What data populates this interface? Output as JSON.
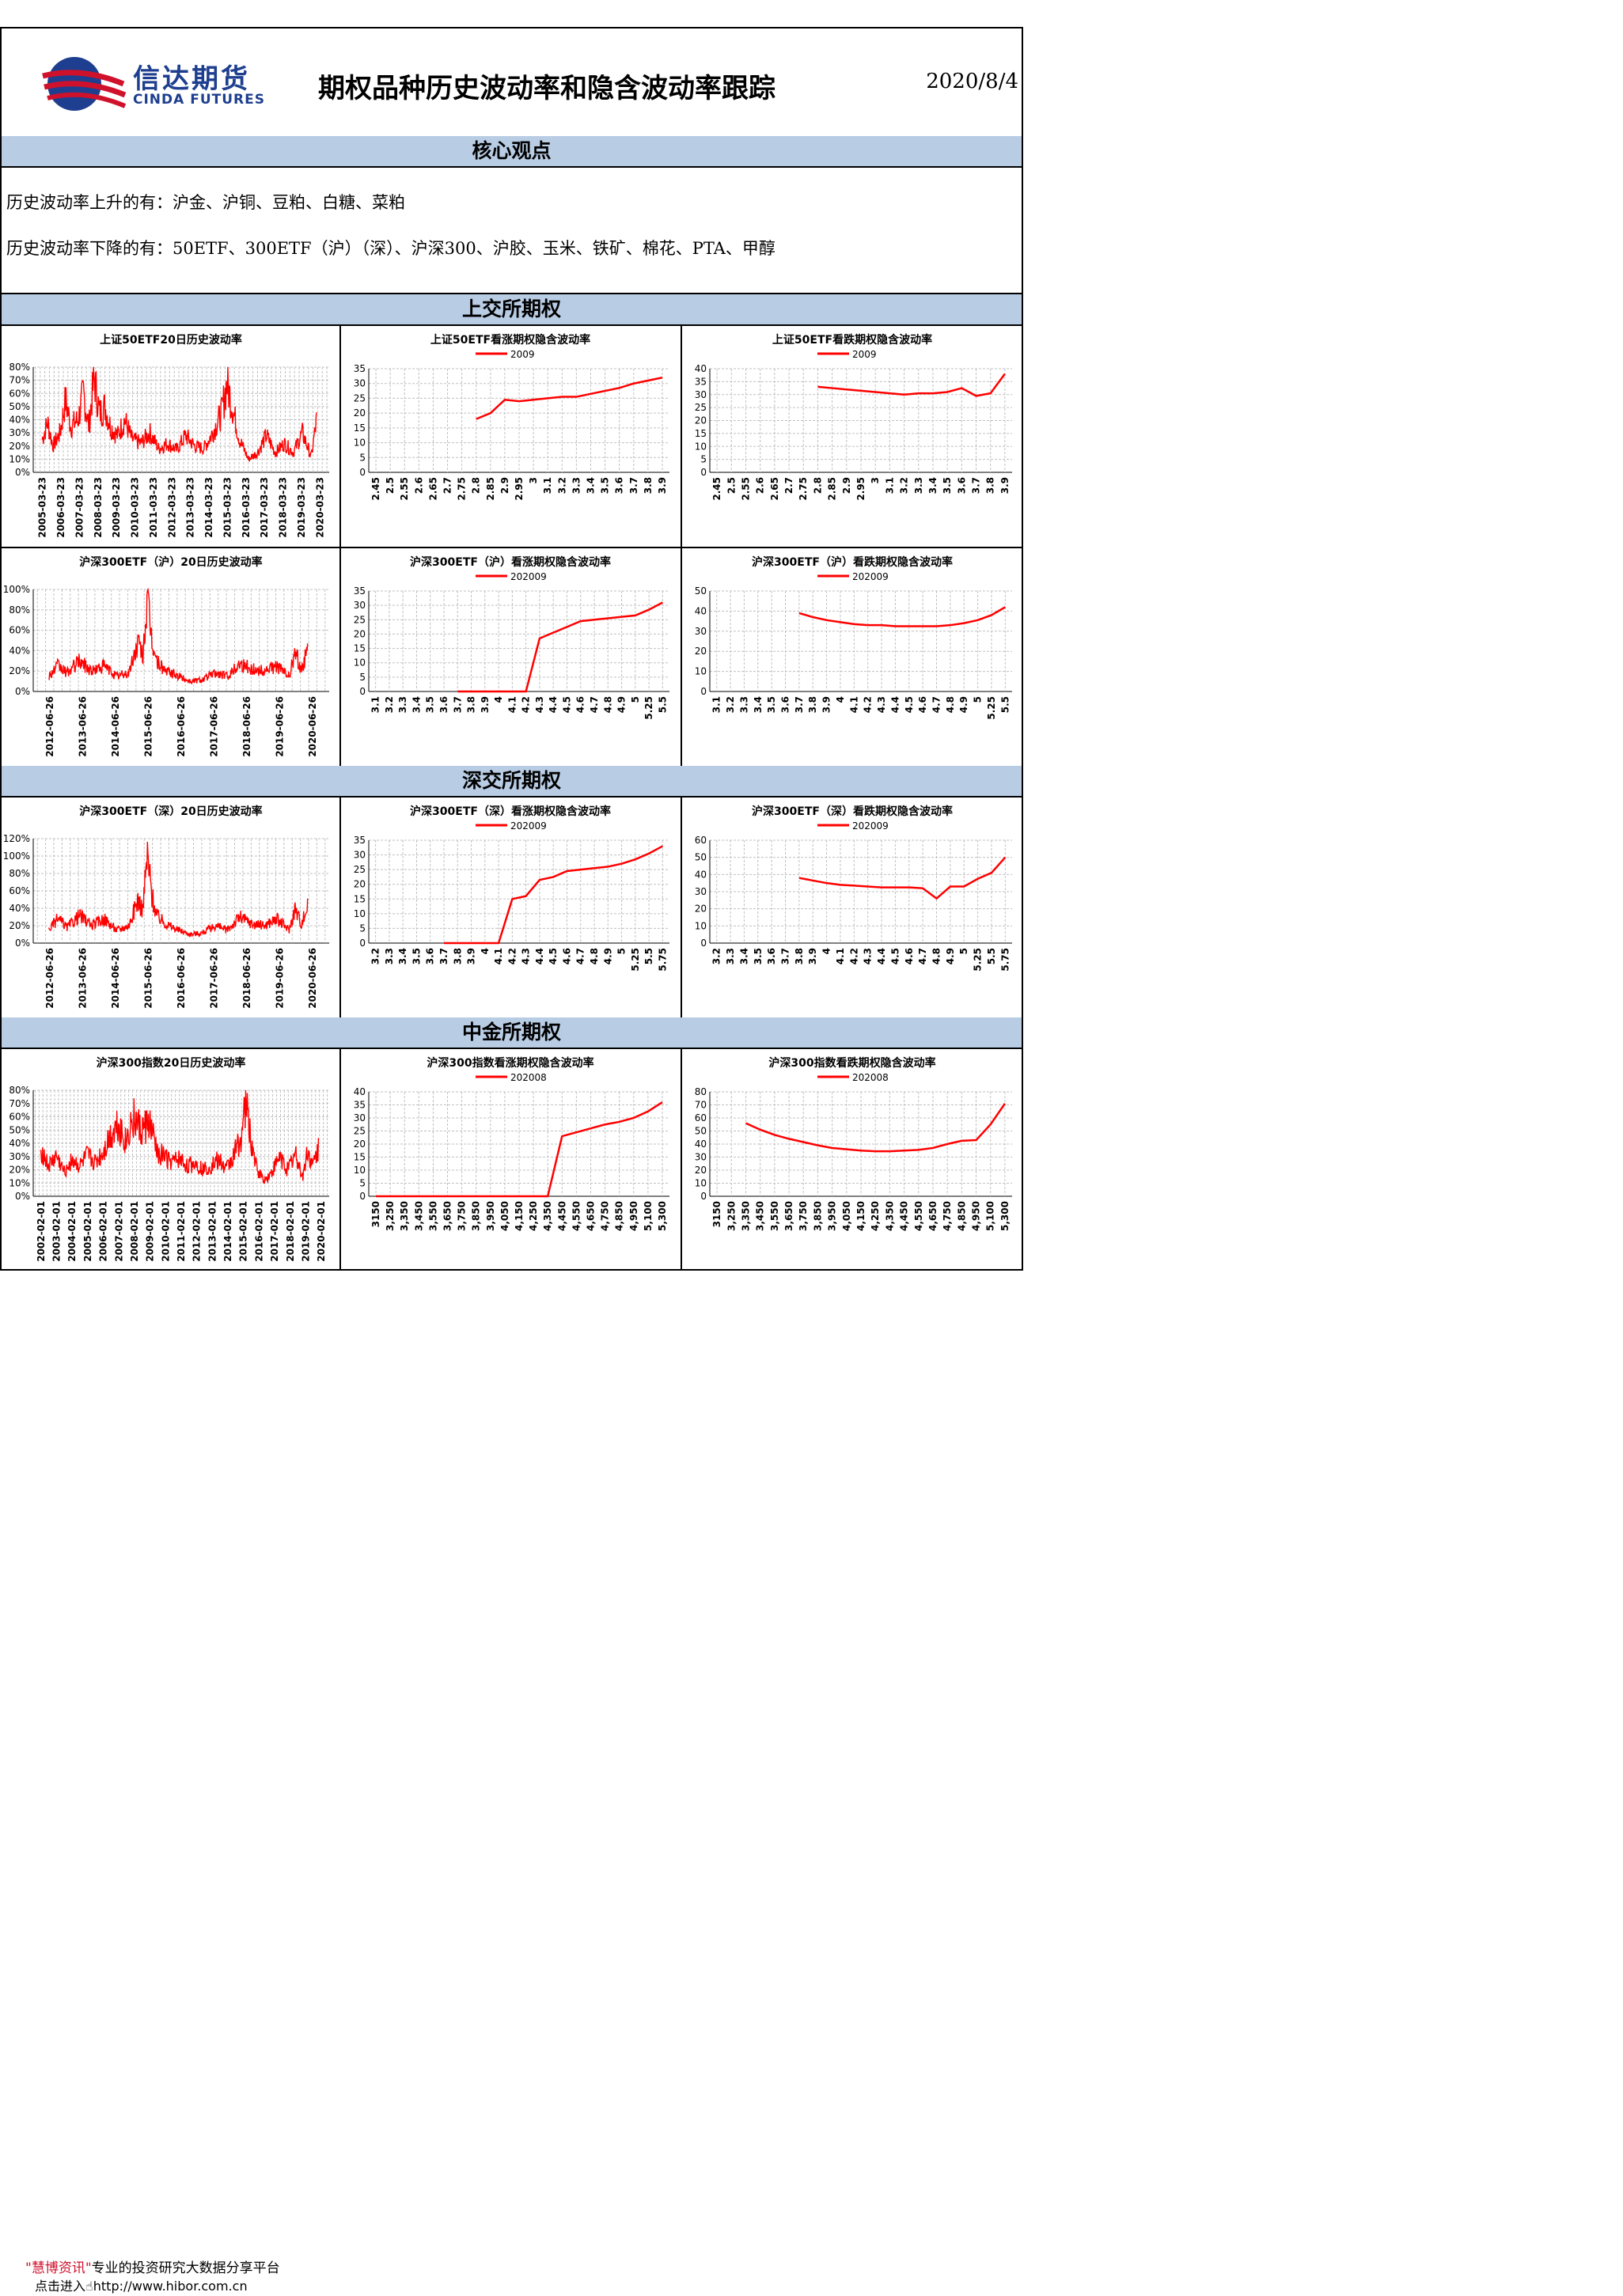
{
  "header": {
    "logo_cn": "信达期货",
    "logo_en": "CINDA FUTURES",
    "title": "期权品种历史波动率和隐含波动率跟踪",
    "date": "2020/8/4"
  },
  "core": {
    "title": "核心观点",
    "line1": "历史波动率上升的有：沪金、沪铜、豆粕、白糖、菜粕",
    "line2": "历史波动率下降的有：50ETF、300ETF（沪）（深）、沪深300、沪胶、玉米、铁矿、棉花、PTA、甲醇"
  },
  "sections": {
    "sse": "上交所期权",
    "szse": "深交所期权",
    "cffex": "中金所期权"
  },
  "footer": {
    "brand": "\"慧博资讯\"",
    "slogan": "专业的投资研究大数据分享平台",
    "enter": "点击进入",
    "url": "http://www.hibor.com.cn"
  },
  "colors": {
    "series": "#ff0000",
    "band": "#b8cce4",
    "grid": "#c0c0c0",
    "logo": "#1e3f8f"
  },
  "chart_data": [
    {
      "type": "line",
      "title": "上证50ETF20日历史波动率",
      "categories": [
        "2005-03-23",
        "2006-03-23",
        "2007-03-23",
        "2008-03-23",
        "2009-03-23",
        "2010-03-23",
        "2011-03-23",
        "2012-03-23",
        "2013-03-23",
        "2014-03-23",
        "2015-03-23",
        "2016-03-23",
        "2017-03-23",
        "2018-03-23",
        "2019-03-23",
        "2020-03-23"
      ],
      "y_ticks": [
        "0%",
        "10%",
        "20%",
        "30%",
        "40%",
        "50%",
        "60%",
        "70%",
        "80%"
      ],
      "ylim": [
        0,
        80
      ],
      "anchors": [
        [
          0,
          25
        ],
        [
          0.3,
          38
        ],
        [
          0.6,
          20
        ],
        [
          1,
          30
        ],
        [
          1.3,
          55
        ],
        [
          1.6,
          35
        ],
        [
          2,
          40
        ],
        [
          2.3,
          60
        ],
        [
          2.6,
          35
        ],
        [
          2.9,
          72
        ],
        [
          3.2,
          45
        ],
        [
          3.5,
          50
        ],
        [
          3.8,
          35
        ],
        [
          4.2,
          28
        ],
        [
          4.6,
          40
        ],
        [
          5,
          25
        ],
        [
          5.5,
          22
        ],
        [
          6,
          30
        ],
        [
          6.5,
          18
        ],
        [
          7,
          22
        ],
        [
          7.5,
          17
        ],
        [
          8,
          28
        ],
        [
          8.5,
          20
        ],
        [
          9,
          18
        ],
        [
          9.5,
          30
        ],
        [
          10,
          45
        ],
        [
          10.3,
          68
        ],
        [
          10.6,
          50
        ],
        [
          11,
          25
        ],
        [
          11.5,
          10
        ],
        [
          12,
          15
        ],
        [
          12.5,
          28
        ],
        [
          13,
          15
        ],
        [
          13.5,
          22
        ],
        [
          14,
          15
        ],
        [
          14.5,
          30
        ],
        [
          15,
          12
        ],
        [
          15.3,
          40
        ]
      ]
    },
    {
      "type": "line",
      "title": "上证50ETF看涨期权隐含波动率",
      "series_name": "2009",
      "categories": [
        "2.45",
        "2.5",
        "2.55",
        "2.6",
        "2.65",
        "2.7",
        "2.75",
        "2.8",
        "2.85",
        "2.9",
        "2.95",
        "3",
        "3.1",
        "3.2",
        "3.3",
        "3.4",
        "3.5",
        "3.6",
        "3.7",
        "3.8",
        "3.9"
      ],
      "y_ticks": [
        "0",
        "5",
        "10",
        "15",
        "20",
        "25",
        "30",
        "35"
      ],
      "ylim": [
        0,
        35
      ],
      "values": [
        null,
        null,
        null,
        null,
        null,
        null,
        null,
        18,
        20,
        24.5,
        24,
        24.5,
        25,
        25.5,
        25.5,
        26.5,
        27.5,
        28.5,
        30,
        31,
        32
      ]
    },
    {
      "type": "line",
      "title": "上证50ETF看跌期权隐含波动率",
      "series_name": "2009",
      "categories": [
        "2.45",
        "2.5",
        "2.55",
        "2.6",
        "2.65",
        "2.7",
        "2.75",
        "2.8",
        "2.85",
        "2.9",
        "2.95",
        "3",
        "3.1",
        "3.2",
        "3.3",
        "3.4",
        "3.5",
        "3.6",
        "3.7",
        "3.8",
        "3.9"
      ],
      "y_ticks": [
        "0",
        "5",
        "10",
        "15",
        "20",
        "25",
        "30",
        "35",
        "40"
      ],
      "ylim": [
        0,
        40
      ],
      "values": [
        null,
        null,
        null,
        null,
        null,
        null,
        null,
        33,
        32.5,
        32,
        31.5,
        31,
        30.5,
        30,
        30.5,
        30.5,
        31,
        32.5,
        29.5,
        30.5,
        38
      ]
    },
    {
      "type": "line",
      "title": "沪深300ETF（沪）20日历史波动率",
      "categories": [
        "2012-06-26",
        "2013-06-26",
        "2014-06-26",
        "2015-06-26",
        "2016-06-26",
        "2017-06-26",
        "2018-06-26",
        "2019-06-26",
        "2020-06-26"
      ],
      "y_ticks": [
        "0%",
        "20%",
        "40%",
        "60%",
        "80%",
        "100%"
      ],
      "ylim": [
        0,
        100
      ],
      "anchors": [
        [
          0,
          15
        ],
        [
          0.3,
          25
        ],
        [
          0.6,
          18
        ],
        [
          1,
          30
        ],
        [
          1.4,
          20
        ],
        [
          1.8,
          25
        ],
        [
          2.2,
          15
        ],
        [
          2.6,
          18
        ],
        [
          2.9,
          48
        ],
        [
          3.05,
          35
        ],
        [
          3.2,
          88
        ],
        [
          3.35,
          50
        ],
        [
          3.5,
          30
        ],
        [
          3.8,
          20
        ],
        [
          4.2,
          15
        ],
        [
          4.6,
          10
        ],
        [
          5,
          12
        ],
        [
          5.4,
          18
        ],
        [
          5.8,
          15
        ],
        [
          6.2,
          28
        ],
        [
          6.6,
          22
        ],
        [
          7,
          20
        ],
        [
          7.4,
          25
        ],
        [
          7.8,
          15
        ],
        [
          8,
          38
        ],
        [
          8.2,
          22
        ],
        [
          8.4,
          40
        ]
      ]
    },
    {
      "type": "line",
      "title": "沪深300ETF（沪）看涨期权隐含波动率",
      "series_name": "202009",
      "categories": [
        "3.1",
        "3.2",
        "3.3",
        "3.4",
        "3.5",
        "3.6",
        "3.7",
        "3.8",
        "3.9",
        "4",
        "4.1",
        "4.2",
        "4.3",
        "4.4",
        "4.5",
        "4.6",
        "4.7",
        "4.8",
        "4.9",
        "5",
        "5.25",
        "5.5"
      ],
      "y_ticks": [
        "0",
        "5",
        "10",
        "15",
        "20",
        "25",
        "30",
        "35"
      ],
      "ylim": [
        0,
        35
      ],
      "values": [
        null,
        null,
        null,
        null,
        null,
        null,
        0,
        0,
        0,
        0,
        0,
        0,
        18.5,
        20.5,
        22.5,
        24.5,
        25,
        25.5,
        26,
        26.5,
        28.5,
        31
      ]
    },
    {
      "type": "line",
      "title": "沪深300ETF（沪）看跌期权隐含波动率",
      "series_name": "202009",
      "categories": [
        "3.1",
        "3.2",
        "3.3",
        "3.4",
        "3.5",
        "3.6",
        "3.7",
        "3.8",
        "3.9",
        "4",
        "4.1",
        "4.2",
        "4.3",
        "4.4",
        "4.5",
        "4.6",
        "4.7",
        "4.8",
        "4.9",
        "5",
        "5.25",
        "5.5"
      ],
      "y_ticks": [
        "0",
        "10",
        "20",
        "30",
        "40",
        "50"
      ],
      "ylim": [
        0,
        50
      ],
      "values": [
        null,
        null,
        null,
        null,
        null,
        null,
        39,
        37,
        35.5,
        34.5,
        33.5,
        33,
        33,
        32.5,
        32.5,
        32.5,
        32.5,
        33,
        34,
        35.5,
        38,
        42
      ]
    },
    {
      "type": "line",
      "title": "沪深300ETF（深）20日历史波动率",
      "categories": [
        "2012-06-26",
        "2013-06-26",
        "2014-06-26",
        "2015-06-26",
        "2016-06-26",
        "2017-06-26",
        "2018-06-26",
        "2019-06-26",
        "2020-06-26"
      ],
      "y_ticks": [
        "0%",
        "20%",
        "40%",
        "60%",
        "80%",
        "100%",
        "120%"
      ],
      "ylim": [
        0,
        120
      ],
      "anchors": [
        [
          0,
          15
        ],
        [
          0.3,
          28
        ],
        [
          0.6,
          18
        ],
        [
          1,
          32
        ],
        [
          1.4,
          20
        ],
        [
          1.8,
          28
        ],
        [
          2.2,
          15
        ],
        [
          2.6,
          20
        ],
        [
          2.9,
          50
        ],
        [
          3.05,
          38
        ],
        [
          3.2,
          100
        ],
        [
          3.35,
          55
        ],
        [
          3.5,
          32
        ],
        [
          3.8,
          22
        ],
        [
          4.2,
          15
        ],
        [
          4.6,
          10
        ],
        [
          5,
          12
        ],
        [
          5.4,
          20
        ],
        [
          5.8,
          15
        ],
        [
          6.2,
          30
        ],
        [
          6.6,
          22
        ],
        [
          7,
          20
        ],
        [
          7.4,
          28
        ],
        [
          7.8,
          15
        ],
        [
          8,
          40
        ],
        [
          8.2,
          22
        ],
        [
          8.4,
          42
        ]
      ]
    },
    {
      "type": "line",
      "title": "沪深300ETF（深）看涨期权隐含波动率",
      "series_name": "202009",
      "categories": [
        "3.2",
        "3.3",
        "3.4",
        "3.5",
        "3.6",
        "3.7",
        "3.8",
        "3.9",
        "4",
        "4.1",
        "4.2",
        "4.3",
        "4.4",
        "4.5",
        "4.6",
        "4.7",
        "4.8",
        "4.9",
        "5",
        "5.25",
        "5.5",
        "5.75"
      ],
      "y_ticks": [
        "0",
        "5",
        "10",
        "15",
        "20",
        "25",
        "30",
        "35"
      ],
      "ylim": [
        0,
        35
      ],
      "values": [
        null,
        null,
        null,
        null,
        null,
        0,
        0,
        0,
        0,
        0,
        15,
        16,
        21.5,
        22.5,
        24.5,
        25,
        25.5,
        26,
        27,
        28.5,
        30.5,
        33
      ]
    },
    {
      "type": "line",
      "title": "沪深300ETF（深）看跌期权隐含波动率",
      "series_name": "202009",
      "categories": [
        "3.2",
        "3.3",
        "3.4",
        "3.5",
        "3.6",
        "3.7",
        "3.8",
        "3.9",
        "4",
        "4.1",
        "4.2",
        "4.3",
        "4.4",
        "4.5",
        "4.6",
        "4.7",
        "4.8",
        "4.9",
        "5",
        "5.25",
        "5.5",
        "5.75"
      ],
      "y_ticks": [
        "0",
        "10",
        "20",
        "30",
        "40",
        "50",
        "60"
      ],
      "ylim": [
        0,
        60
      ],
      "values": [
        null,
        null,
        null,
        null,
        null,
        null,
        38,
        36.5,
        35,
        34,
        33.5,
        33,
        32.5,
        32.5,
        32.5,
        32,
        26,
        33,
        33,
        37.5,
        41,
        50
      ]
    },
    {
      "type": "line",
      "title": "沪深300指数20日历史波动率",
      "categories": [
        "2002-02-01",
        "2003-02-01",
        "2004-02-01",
        "2005-02-01",
        "2006-02-01",
        "2007-02-01",
        "2008-02-01",
        "2009-02-01",
        "2010-02-01",
        "2011-02-01",
        "2012-02-01",
        "2013-02-01",
        "2014-02-01",
        "2015-02-01",
        "2016-02-01",
        "2017-02-01",
        "2018-02-01",
        "2019-02-01",
        "2020-02-01"
      ],
      "y_ticks": [
        "0%",
        "10%",
        "20%",
        "30%",
        "40%",
        "50%",
        "60%",
        "70%",
        "80%"
      ],
      "ylim": [
        0,
        80
      ],
      "anchors": [
        [
          0,
          35
        ],
        [
          0.5,
          22
        ],
        [
          1,
          30
        ],
        [
          1.5,
          18
        ],
        [
          2,
          28
        ],
        [
          2.5,
          22
        ],
        [
          3,
          30
        ],
        [
          3.5,
          25
        ],
        [
          4,
          32
        ],
        [
          4.5,
          45
        ],
        [
          5,
          55
        ],
        [
          5.5,
          40
        ],
        [
          6,
          60
        ],
        [
          6.5,
          48
        ],
        [
          7,
          55
        ],
        [
          7.5,
          35
        ],
        [
          8,
          30
        ],
        [
          8.5,
          25
        ],
        [
          9,
          28
        ],
        [
          9.5,
          22
        ],
        [
          10,
          25
        ],
        [
          10.5,
          20
        ],
        [
          11,
          22
        ],
        [
          11.5,
          28
        ],
        [
          12,
          20
        ],
        [
          12.5,
          30
        ],
        [
          13,
          45
        ],
        [
          13.3,
          70
        ],
        [
          13.6,
          45
        ],
        [
          14,
          20
        ],
        [
          14.5,
          12
        ],
        [
          15,
          18
        ],
        [
          15.5,
          30
        ],
        [
          16,
          20
        ],
        [
          16.5,
          32
        ],
        [
          17,
          15
        ],
        [
          17.3,
          35
        ],
        [
          17.6,
          22
        ],
        [
          18,
          35
        ]
      ]
    },
    {
      "type": "line",
      "title": "沪深300指数看涨期权隐含波动率",
      "series_name": "202008",
      "categories": [
        "3150",
        "3,250",
        "3,350",
        "3,450",
        "3,550",
        "3,650",
        "3,750",
        "3,850",
        "3,950",
        "4,050",
        "4,150",
        "4,250",
        "4,350",
        "4,450",
        "4,550",
        "4,650",
        "4,750",
        "4,850",
        "4,950",
        "5,100",
        "5,300"
      ],
      "y_ticks": [
        "0",
        "5",
        "10",
        "15",
        "20",
        "25",
        "30",
        "35",
        "40"
      ],
      "ylim": [
        0,
        40
      ],
      "values": [
        0,
        0,
        0,
        0,
        0,
        0,
        0,
        0,
        0,
        0,
        0,
        0,
        0,
        23,
        24.5,
        26,
        27.5,
        28.5,
        30,
        32.5,
        36
      ]
    },
    {
      "type": "line",
      "title": "沪深300指数看跌期权隐含波动率",
      "series_name": "202008",
      "categories": [
        "3150",
        "3,250",
        "3,350",
        "3,450",
        "3,550",
        "3,650",
        "3,750",
        "3,850",
        "3,950",
        "4,050",
        "4,150",
        "4,250",
        "4,350",
        "4,450",
        "4,550",
        "4,650",
        "4,750",
        "4,850",
        "4,950",
        "5,100",
        "5,300"
      ],
      "y_ticks": [
        "0",
        "10",
        "20",
        "30",
        "40",
        "50",
        "60",
        "70",
        "80"
      ],
      "ylim": [
        0,
        80
      ],
      "values": [
        null,
        null,
        56,
        51,
        47,
        44,
        41.5,
        39,
        37,
        36,
        35,
        34.5,
        34.5,
        35,
        35.5,
        37,
        40,
        42.5,
        43,
        55,
        71
      ]
    }
  ]
}
